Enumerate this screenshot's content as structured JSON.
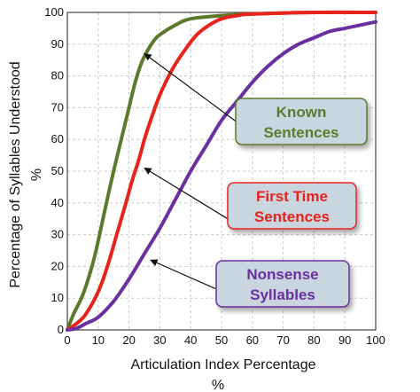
{
  "chart_data": {
    "type": "line",
    "xlabel": "Articulation Index Percentage",
    "xlabel_unit": "%",
    "ylabel": "Percentage of Syllables Understood",
    "ylabel_unit": "%",
    "xlim": [
      0,
      100
    ],
    "ylim": [
      0,
      100
    ],
    "xticks": [
      "0",
      "10",
      "20",
      "30",
      "40",
      "50",
      "60",
      "70",
      "80",
      "90",
      "100"
    ],
    "yticks": [
      "0",
      "10",
      "20",
      "30",
      "40",
      "50",
      "60",
      "70",
      "80",
      "90",
      "100"
    ],
    "grid": true,
    "series": [
      {
        "name": "Known Sentences",
        "label_lines": [
          "Known",
          "Sentences"
        ],
        "color": "#5b7a2b",
        "label_fill": "#c9d5df",
        "points": [
          [
            0,
            0
          ],
          [
            2,
            5
          ],
          [
            5,
            11
          ],
          [
            8,
            20
          ],
          [
            10,
            28
          ],
          [
            12,
            37
          ],
          [
            15,
            50
          ],
          [
            18,
            62
          ],
          [
            20,
            70
          ],
          [
            22,
            78
          ],
          [
            24,
            84
          ],
          [
            26,
            88
          ],
          [
            28,
            91
          ],
          [
            30,
            93
          ],
          [
            35,
            96
          ],
          [
            40,
            98
          ],
          [
            50,
            99
          ],
          [
            60,
            99.5
          ],
          [
            80,
            100
          ],
          [
            100,
            100
          ]
        ]
      },
      {
        "name": "First Time Sentences",
        "label_lines": [
          "First Time",
          "Sentences"
        ],
        "color": "#e8231b",
        "label_fill": "#c9d5df",
        "points": [
          [
            0,
            0
          ],
          [
            3,
            2
          ],
          [
            6,
            5
          ],
          [
            10,
            12
          ],
          [
            13,
            20
          ],
          [
            16,
            30
          ],
          [
            19,
            40
          ],
          [
            21,
            47
          ],
          [
            23,
            53
          ],
          [
            25,
            60
          ],
          [
            27,
            66
          ],
          [
            30,
            74
          ],
          [
            34,
            82
          ],
          [
            38,
            88
          ],
          [
            42,
            93
          ],
          [
            46,
            96
          ],
          [
            50,
            98
          ],
          [
            55,
            99
          ],
          [
            60,
            99.5
          ],
          [
            80,
            100
          ],
          [
            100,
            100
          ]
        ]
      },
      {
        "name": "Nonsense Syllables",
        "label_lines": [
          "Nonsense",
          "Syllables"
        ],
        "color": "#6a2fa0",
        "label_fill": "#c9d5df",
        "points": [
          [
            0,
            0
          ],
          [
            3,
            0.5
          ],
          [
            6,
            2
          ],
          [
            10,
            4
          ],
          [
            15,
            9
          ],
          [
            20,
            16
          ],
          [
            25,
            24
          ],
          [
            30,
            32
          ],
          [
            35,
            41
          ],
          [
            40,
            50
          ],
          [
            45,
            58
          ],
          [
            50,
            66
          ],
          [
            55,
            72
          ],
          [
            60,
            78
          ],
          [
            65,
            83
          ],
          [
            70,
            87
          ],
          [
            75,
            90
          ],
          [
            80,
            92
          ],
          [
            85,
            94
          ],
          [
            90,
            95
          ],
          [
            95,
            96
          ],
          [
            100,
            97
          ]
        ]
      }
    ],
    "annotations": [
      {
        "series": 0,
        "target": [
          25,
          87
        ],
        "from": [
          57,
          64
        ]
      },
      {
        "series": 1,
        "target": [
          25,
          51
        ],
        "from": [
          52,
          35
        ]
      },
      {
        "series": 2,
        "target": [
          27,
          22
        ],
        "from": [
          48,
          13
        ]
      }
    ]
  }
}
